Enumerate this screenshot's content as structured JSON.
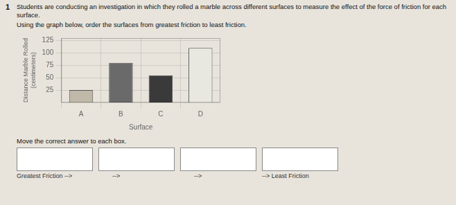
{
  "chart_data": {
    "type": "bar",
    "title": "Students are conducting an investigation in which they rolled a marble across different surfaces to measure the effect of the force of friction for each surface.",
    "subtitle": "Using the graph below, order the surfaces from greatest friction to least friction.",
    "categories": [
      "A",
      "B",
      "C",
      "D"
    ],
    "values": [
      25,
      80,
      55,
      110
    ],
    "colors": [
      "#c0b8a8",
      "#6a6a6a",
      "#3a3a3a",
      "#e8e8e0"
    ],
    "xlabel": "Surface",
    "ylabel": "Distance Marble Rolled\n(centimeters)",
    "ylim": [
      0,
      130
    ],
    "yticks": [
      25,
      50,
      75,
      100,
      125
    ],
    "grid": true,
    "annotations": [
      "1",
      "Move the correct answer to each box.",
      "Greatest Friction -->",
      "-->",
      "-->",
      "--> Least Friction"
    ]
  }
}
